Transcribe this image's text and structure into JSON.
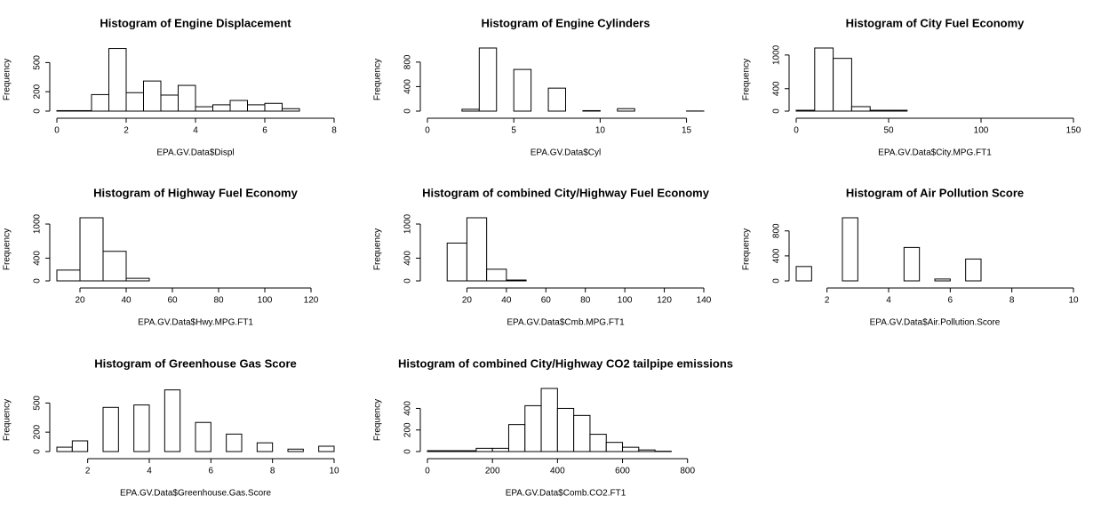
{
  "chart_data": [
    {
      "type": "histogram",
      "title": "Histogram of Engine Displacement",
      "xlabel": "EPA.GV.Data$Displ",
      "ylabel": "Frequency",
      "bins": [
        0,
        0.5,
        1,
        1.5,
        2,
        2.5,
        3,
        3.5,
        4,
        4.5,
        5,
        5.5,
        6,
        6.5,
        7
      ],
      "counts": [
        5,
        5,
        170,
        645,
        190,
        310,
        165,
        265,
        45,
        65,
        110,
        65,
        80,
        25
      ],
      "xlim": [
        0,
        8
      ],
      "ylim": [
        0,
        650
      ],
      "xticks": [
        0,
        2,
        4,
        6,
        8
      ],
      "yticks": [
        0,
        200,
        500
      ],
      "color": "#ffffff",
      "edgecolor": "#000000"
    },
    {
      "type": "histogram",
      "title": "Histogram of Engine Cylinders",
      "xlabel": "EPA.GV.Data$Cyl",
      "ylabel": "Frequency",
      "bins": [
        2,
        3,
        4,
        5,
        6,
        7,
        8,
        9,
        10,
        11,
        12,
        13,
        14,
        15,
        16
      ],
      "counts": [
        30,
        1030,
        0,
        680,
        0,
        375,
        0,
        8,
        0,
        40,
        0,
        0,
        0,
        2
      ],
      "xlim": [
        0,
        16
      ],
      "ylim": [
        0,
        1030
      ],
      "xticks": [
        0,
        5,
        10,
        15
      ],
      "yticks": [
        0,
        400,
        800
      ],
      "color": "#ffffff",
      "edgecolor": "#000000"
    },
    {
      "type": "histogram",
      "title": "Histogram of City Fuel Economy",
      "xlabel": "EPA.GV.Data$City.MPG.FT1",
      "ylabel": "Frequency",
      "bins": [
        0,
        10,
        20,
        30,
        40,
        50,
        60,
        70,
        80,
        90,
        100,
        110,
        120,
        130,
        140,
        150
      ],
      "counts": [
        15,
        1125,
        940,
        80,
        15,
        15,
        0,
        0,
        0,
        0,
        0,
        0,
        0,
        0,
        0
      ],
      "xlim": [
        0,
        150
      ],
      "ylim": [
        0,
        1125
      ],
      "xticks": [
        0,
        50,
        100,
        150
      ],
      "yticks": [
        0,
        400,
        1000
      ],
      "color": "#ffffff",
      "edgecolor": "#000000"
    },
    {
      "type": "histogram",
      "title": "Histogram of Highway Fuel Economy",
      "xlabel": "EPA.GV.Data$Hwy.MPG.FT1",
      "ylabel": "Frequency",
      "bins": [
        10,
        20,
        30,
        40,
        50,
        60,
        70,
        80,
        90,
        100,
        110,
        120,
        130
      ],
      "counts": [
        190,
        1110,
        520,
        45,
        0,
        0,
        0,
        0,
        0,
        0,
        0,
        0
      ],
      "xlim": [
        10,
        130
      ],
      "ylim": [
        0,
        1110
      ],
      "xticks": [
        20,
        40,
        60,
        80,
        100,
        120
      ],
      "yticks": [
        0,
        400,
        1000
      ],
      "color": "#ffffff",
      "edgecolor": "#000000"
    },
    {
      "type": "histogram",
      "title": "Histogram of combined City/Highway Fuel Economy",
      "xlabel": "EPA.GV.Data$Cmb.MPG.FT1",
      "ylabel": "Frequency",
      "bins": [
        0,
        10,
        20,
        30,
        40,
        50,
        60,
        70,
        80,
        90,
        100,
        110,
        120,
        130,
        140
      ],
      "counts": [
        0,
        665,
        1110,
        205,
        15,
        0,
        0,
        0,
        0,
        0,
        0,
        0,
        0,
        0
      ],
      "xlim": [
        0,
        140
      ],
      "ylim": [
        0,
        1110
      ],
      "xticks": [
        20,
        40,
        60,
        80,
        100,
        120,
        140
      ],
      "yticks": [
        0,
        400,
        1000
      ],
      "color": "#ffffff",
      "edgecolor": "#000000"
    },
    {
      "type": "histogram",
      "title": "Histogram of Air Pollution Score",
      "xlabel": "EPA.GV.Data$Air.Pollution.Score",
      "ylabel": "Frequency",
      "bins": [
        1,
        1.5,
        2,
        2.5,
        3,
        3.5,
        4,
        4.5,
        5,
        5.5,
        6,
        6.5,
        7,
        7.5,
        8,
        8.5,
        9,
        9.5,
        10
      ],
      "counts": [
        230,
        0,
        0,
        1010,
        0,
        0,
        0,
        535,
        0,
        30,
        0,
        350,
        0,
        0,
        0,
        0,
        0,
        0
      ],
      "xlim": [
        1,
        10
      ],
      "ylim": [
        0,
        1010
      ],
      "xticks": [
        2,
        4,
        6,
        8,
        10
      ],
      "yticks": [
        0,
        400,
        800
      ],
      "color": "#ffffff",
      "edgecolor": "#000000"
    },
    {
      "type": "histogram",
      "title": "Histogram of Greenhouse Gas Score",
      "xlabel": "EPA.GV.Data$Greenhouse.Gas.Score",
      "ylabel": "Frequency",
      "bins": [
        1,
        1.5,
        2,
        2.5,
        3,
        3.5,
        4,
        4.5,
        5,
        5.5,
        6,
        6.5,
        7,
        7.5,
        8,
        8.5,
        9,
        9.5,
        10
      ],
      "counts": [
        45,
        110,
        0,
        455,
        0,
        480,
        0,
        635,
        0,
        300,
        0,
        180,
        0,
        90,
        0,
        25,
        0,
        55
      ],
      "xlim": [
        1,
        10
      ],
      "ylim": [
        0,
        650
      ],
      "xticks": [
        2,
        4,
        6,
        8,
        10
      ],
      "yticks": [
        0,
        200,
        500
      ],
      "color": "#ffffff",
      "edgecolor": "#000000"
    },
    {
      "type": "histogram",
      "title": "Histogram of combined City/Highway CO2 tailpipe emissions",
      "xlabel": "EPA.GV.Data$Comb.CO2.FT1",
      "ylabel": "Frequency",
      "bins": [
        0,
        50,
        100,
        150,
        200,
        250,
        300,
        350,
        400,
        450,
        500,
        550,
        600,
        650,
        700,
        750,
        800,
        850
      ],
      "counts": [
        8,
        8,
        8,
        30,
        30,
        250,
        425,
        585,
        400,
        335,
        160,
        85,
        40,
        15,
        3,
        0,
        0
      ],
      "xlim": [
        0,
        850
      ],
      "ylim": [
        0,
        585
      ],
      "xticks": [
        0,
        200,
        400,
        600,
        800
      ],
      "yticks": [
        0,
        200,
        400
      ],
      "color": "#ffffff",
      "edgecolor": "#000000"
    }
  ]
}
